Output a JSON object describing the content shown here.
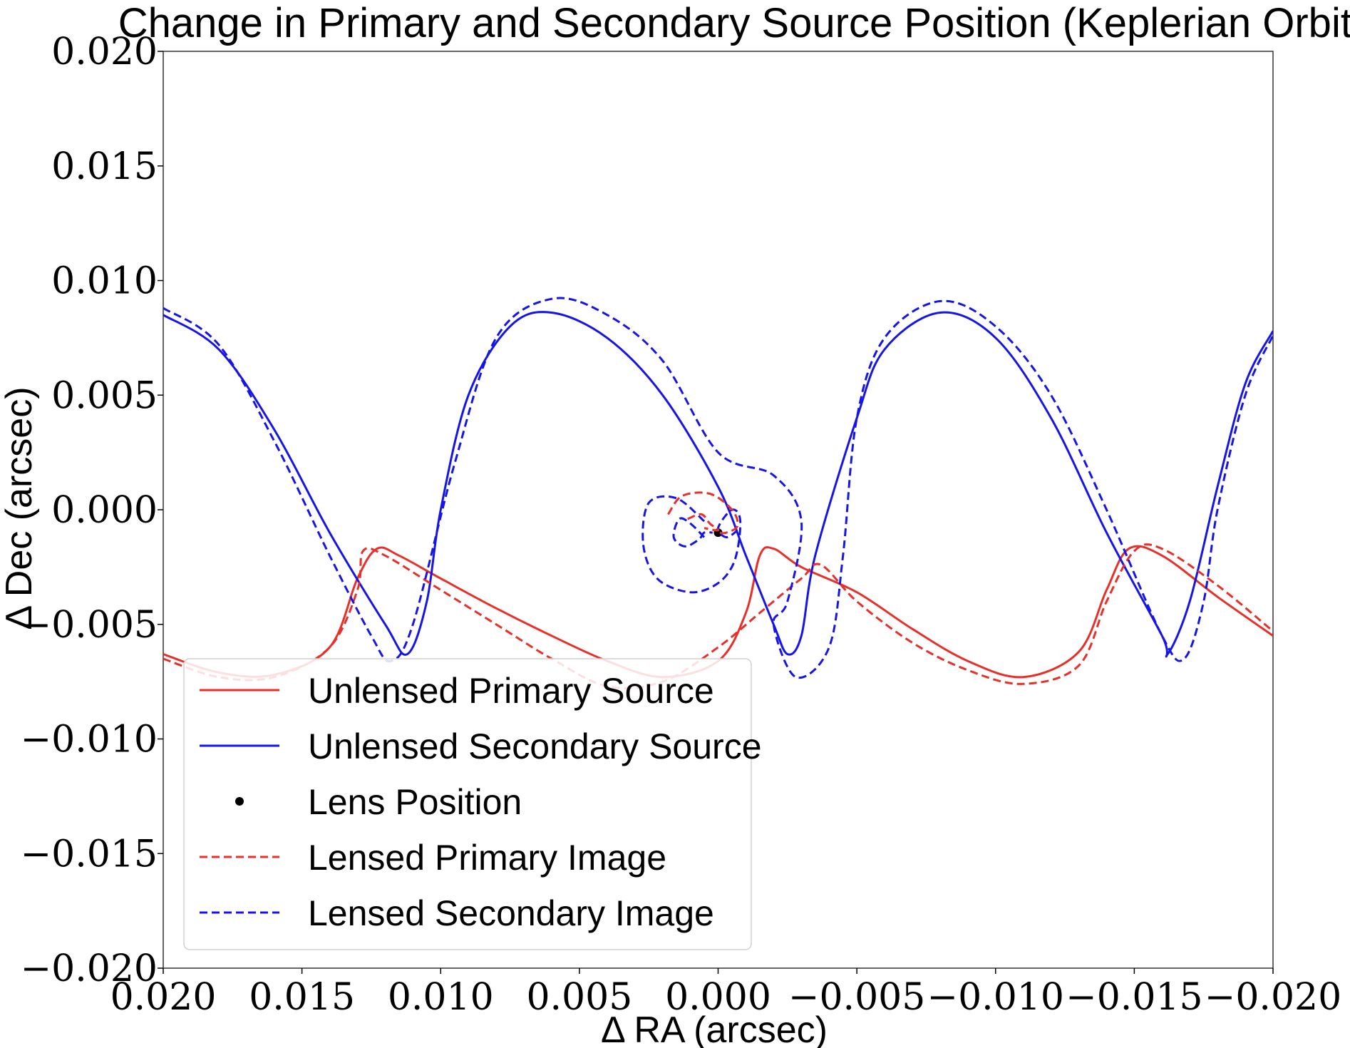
{
  "chart_data": {
    "type": "line",
    "title": "Change in Primary and Secondary Source Position (Keplerian Orbit)",
    "xlabel": "Δ RA (arcsec)",
    "ylabel": "Δ Dec (arcsec)",
    "xlim": [
      0.02,
      -0.02
    ],
    "ylim": [
      -0.02,
      0.02
    ],
    "x_inverted": true,
    "grid": false,
    "legend_position": "lower-left",
    "xticks": [
      "0.020",
      "0.015",
      "0.010",
      "0.005",
      "0.000",
      "−0.005",
      "−0.010",
      "−0.015",
      "−0.020"
    ],
    "xtick_values": [
      0.02,
      0.015,
      0.01,
      0.005,
      0.0,
      -0.005,
      -0.01,
      -0.015,
      -0.02
    ],
    "yticks": [
      "−0.020",
      "−0.015",
      "−0.010",
      "−0.005",
      "0.000",
      "0.005",
      "0.010",
      "0.015",
      "0.020"
    ],
    "ytick_values": [
      -0.02,
      -0.015,
      -0.01,
      -0.005,
      0.0,
      0.005,
      0.01,
      0.015,
      0.02
    ],
    "colors": {
      "primary": "#e8302a",
      "secondary": "#1515e8",
      "lens": "#000000"
    },
    "series": [
      {
        "name": "Unlensed Primary Source",
        "style": "solid",
        "color": "#e8302a",
        "points": [
          [
            0.02,
            -0.0063
          ],
          [
            0.018,
            -0.0071
          ],
          [
            0.016,
            -0.0072
          ],
          [
            0.014,
            -0.006
          ],
          [
            0.013,
            -0.003
          ],
          [
            0.0123,
            -0.0017
          ],
          [
            0.0115,
            -0.002
          ],
          [
            0.01,
            -0.003
          ],
          [
            0.008,
            -0.0043
          ],
          [
            0.006,
            -0.0055
          ],
          [
            0.004,
            -0.0066
          ],
          [
            0.002,
            -0.0073
          ],
          [
            0.0,
            -0.0066
          ],
          [
            -0.001,
            -0.0045
          ],
          [
            -0.0015,
            -0.002
          ],
          [
            -0.002,
            -0.0017
          ],
          [
            -0.003,
            -0.0025
          ],
          [
            -0.005,
            -0.0036
          ],
          [
            -0.007,
            -0.0052
          ],
          [
            -0.009,
            -0.0066
          ],
          [
            -0.011,
            -0.0073
          ],
          [
            -0.013,
            -0.0062
          ],
          [
            -0.014,
            -0.0035
          ],
          [
            -0.0148,
            -0.0017
          ],
          [
            -0.016,
            -0.002
          ],
          [
            -0.018,
            -0.0038
          ],
          [
            -0.02,
            -0.0055
          ]
        ]
      },
      {
        "name": "Unlensed Secondary Source",
        "style": "solid",
        "color": "#1515e8",
        "points": [
          [
            0.02,
            0.0085
          ],
          [
            0.018,
            0.007
          ],
          [
            0.016,
            0.0035
          ],
          [
            0.014,
            -0.001
          ],
          [
            0.012,
            -0.005
          ],
          [
            0.0112,
            -0.0063
          ],
          [
            0.0105,
            -0.004
          ],
          [
            0.01,
            0.0
          ],
          [
            0.009,
            0.005
          ],
          [
            0.0075,
            0.008
          ],
          [
            0.006,
            0.0086
          ],
          [
            0.004,
            0.0075
          ],
          [
            0.002,
            0.005
          ],
          [
            0.0,
            0.001
          ],
          [
            -0.001,
            -0.002
          ],
          [
            -0.002,
            -0.005
          ],
          [
            -0.0025,
            -0.0063
          ],
          [
            -0.003,
            -0.0055
          ],
          [
            -0.0035,
            -0.002
          ],
          [
            -0.005,
            0.004
          ],
          [
            -0.006,
            0.007
          ],
          [
            -0.008,
            0.0086
          ],
          [
            -0.01,
            0.0075
          ],
          [
            -0.012,
            0.004
          ],
          [
            -0.014,
            -0.001
          ],
          [
            -0.016,
            -0.0055
          ],
          [
            -0.0162,
            -0.0063
          ],
          [
            -0.017,
            -0.004
          ],
          [
            -0.018,
            0.001
          ],
          [
            -0.019,
            0.0055
          ],
          [
            -0.02,
            0.0078
          ]
        ]
      },
      {
        "name": "Lens Position",
        "style": "marker",
        "color": "#000000",
        "points": [
          [
            0.0,
            -0.001
          ]
        ]
      },
      {
        "name": "Lensed Primary Image",
        "style": "dashed",
        "color": "#e8302a",
        "points": [
          [
            0.02,
            -0.0065
          ],
          [
            0.018,
            -0.0073
          ],
          [
            0.016,
            -0.0073
          ],
          [
            0.014,
            -0.006
          ],
          [
            0.013,
            -0.0035
          ],
          [
            0.0128,
            -0.0018
          ],
          [
            0.012,
            -0.002
          ],
          [
            0.01,
            -0.0035
          ],
          [
            0.008,
            -0.005
          ],
          [
            0.006,
            -0.0065
          ],
          [
            0.004,
            -0.0077
          ],
          [
            0.002,
            -0.0075
          ],
          [
            0.0,
            -0.006
          ],
          [
            -0.0015,
            -0.0045
          ],
          [
            -0.003,
            -0.003
          ],
          [
            -0.0037,
            -0.0024
          ],
          [
            -0.005,
            -0.004
          ],
          [
            -0.007,
            -0.0058
          ],
          [
            -0.009,
            -0.007
          ],
          [
            -0.011,
            -0.0076
          ],
          [
            -0.013,
            -0.0068
          ],
          [
            -0.014,
            -0.004
          ],
          [
            -0.015,
            -0.0018
          ],
          [
            -0.016,
            -0.0017
          ],
          [
            -0.018,
            -0.0033
          ],
          [
            -0.02,
            -0.0053
          ]
        ]
      },
      {
        "name": "Lensed Secondary Image",
        "style": "dashed",
        "color": "#1515e8",
        "points": [
          [
            0.02,
            0.0088
          ],
          [
            0.018,
            0.0072
          ],
          [
            0.016,
            0.003
          ],
          [
            0.014,
            -0.002
          ],
          [
            0.0125,
            -0.0055
          ],
          [
            0.0118,
            -0.0066
          ],
          [
            0.011,
            -0.005
          ],
          [
            0.0095,
            0.002
          ],
          [
            0.008,
            0.0075
          ],
          [
            0.006,
            0.0092
          ],
          [
            0.004,
            0.0085
          ],
          [
            0.002,
            0.0065
          ],
          [
            0.0,
            0.0025
          ],
          [
            -0.002,
            0.0015
          ],
          [
            -0.003,
            -0.0005
          ],
          [
            -0.0025,
            -0.004
          ],
          [
            -0.002,
            -0.005
          ],
          [
            -0.0028,
            -0.0073
          ],
          [
            -0.004,
            -0.006
          ],
          [
            -0.0045,
            -0.002
          ],
          [
            -0.005,
            0.004
          ],
          [
            -0.006,
            0.0075
          ],
          [
            -0.008,
            0.0091
          ],
          [
            -0.01,
            0.008
          ],
          [
            -0.012,
            0.005
          ],
          [
            -0.014,
            0.0
          ],
          [
            -0.016,
            -0.0055
          ],
          [
            -0.0168,
            -0.0065
          ],
          [
            -0.0175,
            -0.004
          ],
          [
            -0.018,
            0.0
          ],
          [
            -0.019,
            0.005
          ],
          [
            -0.02,
            0.0076
          ]
        ]
      },
      {
        "name": "",
        "style": "dashed",
        "color": "#1515e8",
        "legend": false,
        "points": [
          [
            0.0005,
            -0.0005
          ],
          [
            0.0015,
            0.0005
          ],
          [
            0.0025,
            0.0003
          ],
          [
            0.0027,
            -0.0015
          ],
          [
            0.0022,
            -0.003
          ],
          [
            0.001,
            -0.0036
          ],
          [
            0.0,
            -0.0032
          ],
          [
            -0.0006,
            -0.0022
          ],
          [
            -0.0008,
            -0.0005
          ],
          [
            -0.0005,
            0.0
          ],
          [
            0.0,
            -0.0008
          ],
          [
            -0.0003,
            -0.0012
          ],
          [
            -0.0007,
            -0.0009
          ]
        ]
      },
      {
        "name": "",
        "style": "dashed",
        "color": "#1515e8",
        "legend": false,
        "points": [
          [
            0.0005,
            -0.0012
          ],
          [
            0.001,
            -0.0006
          ],
          [
            0.0014,
            -0.0004
          ],
          [
            0.0016,
            -0.0012
          ],
          [
            0.0012,
            -0.0016
          ],
          [
            0.0007,
            -0.0013
          ],
          [
            0.0005,
            -0.001
          ],
          [
            0.0002,
            -0.001
          ]
        ]
      },
      {
        "name": "",
        "style": "dashed",
        "color": "#e8302a",
        "legend": false,
        "points": [
          [
            0.0018,
            -0.0002
          ],
          [
            0.0013,
            0.0006
          ],
          [
            0.0003,
            0.0007
          ],
          [
            -0.0005,
            0.0
          ],
          [
            -0.0007,
            -0.0007
          ],
          [
            -0.0003,
            -0.001
          ],
          [
            0.0,
            -0.001
          ]
        ]
      },
      {
        "name": "",
        "style": "dashed",
        "color": "#e8302a",
        "legend": false,
        "points": [
          [
            0.0011,
            -0.0004
          ],
          [
            0.0006,
            -0.0002
          ],
          [
            0.0003,
            -0.0006
          ],
          [
            0.0,
            -0.0009
          ],
          [
            0.0005,
            -0.0008
          ]
        ]
      }
    ],
    "legend": [
      {
        "label": "Unlensed Primary Source",
        "kind": "solid",
        "color": "#e8302a"
      },
      {
        "label": "Unlensed Secondary Source",
        "kind": "solid",
        "color": "#1515e8"
      },
      {
        "label": "Lens Position",
        "kind": "marker",
        "color": "#000000"
      },
      {
        "label": "Lensed Primary Image",
        "kind": "dashed",
        "color": "#e8302a"
      },
      {
        "label": "Lensed Secondary Image",
        "kind": "dashed",
        "color": "#1515e8"
      }
    ]
  }
}
